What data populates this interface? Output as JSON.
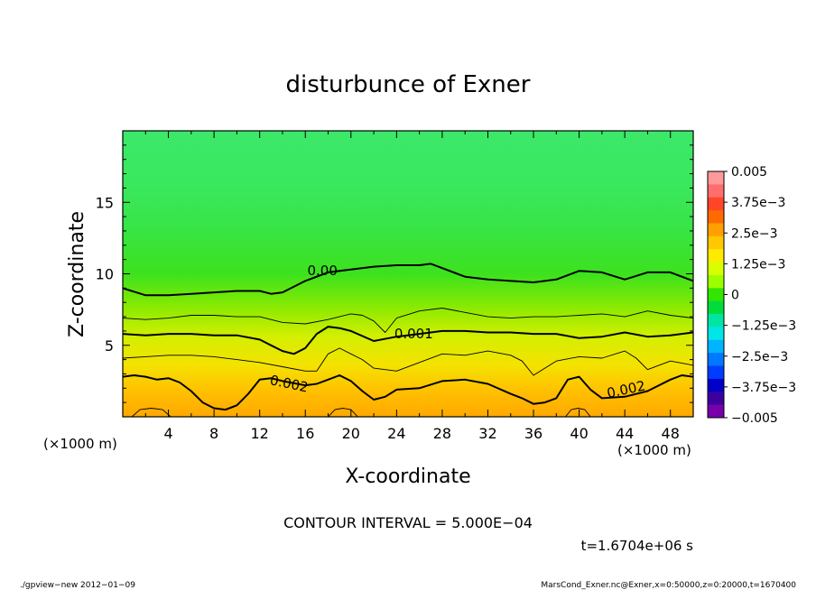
{
  "chart_data": {
    "type": "contour",
    "title": "disturbunce of Exner",
    "xlabel": "X-coordinate",
    "ylabel": "Z-coordinate",
    "xunit_note": "(×1000 m)",
    "yunit_note": "(×1000 m)",
    "xlim": [
      0,
      50
    ],
    "ylim": [
      0,
      20
    ],
    "xticks": [
      4,
      8,
      12,
      16,
      20,
      24,
      28,
      32,
      36,
      40,
      44,
      48
    ],
    "yticks": [
      5,
      10,
      15
    ],
    "colorbar": {
      "min": -0.005,
      "max": 0.005,
      "tick_values": [
        0.005,
        0.00375,
        0.0025,
        0.00125,
        0,
        -0.00125,
        -0.0025,
        -0.00375,
        -0.005
      ],
      "tick_labels": [
        "0.005",
        "3.75e−3",
        "2.5e−3",
        "1.25e−3",
        "0",
        "−1.25e−3",
        "−2.5e−3",
        "−3.75e−3",
        "−0.005"
      ],
      "colors_top_to_bottom": [
        "#ff9a9a",
        "#ff6e6e",
        "#ff4628",
        "#ff6a00",
        "#ffa000",
        "#ffc800",
        "#ffeb00",
        "#d7ff00",
        "#9bff00",
        "#32e600",
        "#00dc3c",
        "#00e6a0",
        "#00e6e6",
        "#00b4ff",
        "#0078ff",
        "#003cff",
        "#0000c8",
        "#3c00a0",
        "#7800aa"
      ]
    },
    "contours": [
      {
        "level": 0.0,
        "label": "0.00",
        "label_x": 17.5,
        "label_z": 9.9,
        "style": "thick",
        "x": [
          0,
          2,
          4,
          6,
          8,
          10,
          12,
          13,
          14,
          16,
          18,
          20,
          22,
          24,
          26,
          27,
          28,
          30,
          32,
          34,
          36,
          38,
          40,
          42,
          44,
          46,
          48,
          50
        ],
        "z": [
          9.0,
          8.5,
          8.5,
          8.6,
          8.7,
          8.8,
          8.8,
          8.6,
          8.7,
          9.5,
          10.1,
          10.3,
          10.5,
          10.6,
          10.6,
          10.7,
          10.4,
          9.8,
          9.6,
          9.5,
          9.4,
          9.6,
          10.2,
          10.1,
          9.6,
          10.1,
          10.1,
          9.5
        ]
      },
      {
        "level": 0.0005,
        "label": "",
        "style": "thin",
        "x": [
          0,
          2,
          4,
          6,
          8,
          10,
          12,
          14,
          16,
          18,
          20,
          21,
          22,
          23,
          24,
          26,
          28,
          30,
          32,
          34,
          36,
          38,
          40,
          42,
          44,
          46,
          48,
          50
        ],
        "z": [
          6.9,
          6.8,
          6.9,
          7.1,
          7.1,
          7.0,
          7.0,
          6.6,
          6.5,
          6.8,
          7.2,
          7.1,
          6.7,
          5.9,
          6.9,
          7.4,
          7.6,
          7.3,
          7.0,
          6.9,
          7.0,
          7.0,
          7.1,
          7.2,
          7.0,
          7.4,
          7.1,
          6.9
        ]
      },
      {
        "level": 0.001,
        "label": "0.001",
        "label_x": 25.5,
        "label_z": 5.5,
        "style": "thick",
        "x": [
          0,
          2,
          4,
          6,
          8,
          10,
          12,
          13,
          14,
          15,
          16,
          17,
          18,
          19,
          20,
          22,
          24,
          26,
          28,
          30,
          32,
          34,
          36,
          38,
          40,
          42,
          44,
          46,
          48,
          50
        ],
        "z": [
          5.8,
          5.7,
          5.8,
          5.8,
          5.7,
          5.7,
          5.4,
          5.0,
          4.6,
          4.4,
          4.8,
          5.8,
          6.3,
          6.2,
          6.0,
          5.3,
          5.6,
          5.8,
          6.0,
          6.0,
          5.9,
          5.9,
          5.8,
          5.8,
          5.5,
          5.6,
          5.9,
          5.6,
          5.7,
          5.9
        ]
      },
      {
        "level": 0.0015,
        "label": "",
        "style": "thin",
        "x": [
          0,
          2,
          4,
          6,
          8,
          10,
          12,
          14,
          16,
          17,
          18,
          19,
          20,
          21,
          22,
          24,
          26,
          28,
          30,
          32,
          34,
          35,
          36,
          38,
          40,
          42,
          44,
          45,
          46,
          48,
          50
        ],
        "z": [
          4.1,
          4.2,
          4.3,
          4.3,
          4.2,
          4.0,
          3.8,
          3.5,
          3.2,
          3.2,
          4.4,
          4.8,
          4.4,
          4.0,
          3.4,
          3.2,
          3.8,
          4.4,
          4.3,
          4.6,
          4.3,
          3.9,
          2.9,
          3.9,
          4.2,
          4.1,
          4.6,
          4.1,
          3.3,
          3.9,
          3.6
        ]
      },
      {
        "level": 0.002,
        "label": "0.002",
        "label_x": 14.5,
        "label_z": 2.0,
        "label_rot": 12,
        "style": "thick",
        "x": [
          0,
          1,
          2,
          3,
          4,
          5,
          6,
          7,
          8,
          9,
          10,
          11,
          12,
          13,
          14,
          16,
          17,
          18,
          19,
          20,
          21,
          22,
          23,
          24,
          26,
          28,
          30,
          32,
          34,
          35,
          36,
          37,
          38,
          39,
          40,
          41,
          42,
          44,
          46,
          48,
          49,
          50
        ],
        "z": [
          2.8,
          2.9,
          2.8,
          2.6,
          2.7,
          2.4,
          1.8,
          1.0,
          0.6,
          0.5,
          0.8,
          1.6,
          2.6,
          2.7,
          2.5,
          2.2,
          2.3,
          2.6,
          2.9,
          2.5,
          1.8,
          1.2,
          1.4,
          1.9,
          2.0,
          2.5,
          2.6,
          2.3,
          1.6,
          1.3,
          0.9,
          1.0,
          1.3,
          2.6,
          2.8,
          1.9,
          1.3,
          1.4,
          1.8,
          2.6,
          2.9,
          2.8
        ]
      },
      {
        "level": 0.0025,
        "label": "",
        "style": "thin",
        "x": [
          0.8,
          1.5,
          2.5,
          3.5,
          4.2
        ],
        "z": [
          0,
          0.5,
          0.6,
          0.5,
          0
        ]
      },
      {
        "level": 0.0025,
        "label": "",
        "style": "thin",
        "x": [
          18.0,
          18.6,
          19.3,
          20.0,
          20.6
        ],
        "z": [
          0,
          0.5,
          0.6,
          0.5,
          0
        ]
      },
      {
        "level": 0.0025,
        "label": "",
        "style": "thin",
        "x": [
          38.8,
          39.3,
          39.9,
          40.5,
          41.0
        ],
        "z": [
          0,
          0.5,
          0.6,
          0.5,
          0
        ]
      }
    ],
    "annotations": {
      "contour_interval": "CONTOUR INTERVAL = 5.000E−04",
      "time": "t=1.6704e+06 s"
    }
  },
  "footer": {
    "left": "./gpview−new 2012−01−09",
    "right": "MarsCond_Exner.nc@Exner,x=0:50000,z=0:20000,t=1670400"
  }
}
